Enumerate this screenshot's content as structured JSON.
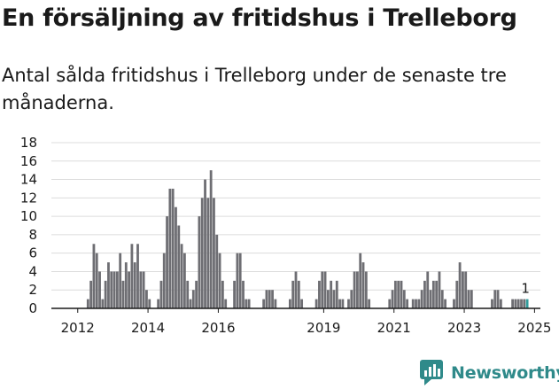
{
  "title": "En försäljning av fritidshus i Trelleborg",
  "subtitle": "Antal sålda fritidshus i Trelleborg under de senaste tre månaderna.",
  "brand": {
    "name": "Newsworthy",
    "icon": "newsworthy-logo-icon",
    "color": "#2f8a8a"
  },
  "chart_data": {
    "type": "bar",
    "title": "",
    "xlabel": "",
    "ylabel": "",
    "ylim": [
      0,
      18
    ],
    "yticks": [
      0,
      2,
      4,
      6,
      8,
      10,
      12,
      14,
      16,
      18
    ],
    "grid": true,
    "x_range": [
      "2011-10",
      "2025-09"
    ],
    "xtick_labels": [
      "2012",
      "2014",
      "2016",
      "2019",
      "2021",
      "2023",
      "2025"
    ],
    "bar_color": "#6e6e73",
    "highlight_color": "#2f9c9c",
    "highlight_label": "1",
    "series": [
      {
        "values": [
          {
            "x": "2012-10",
            "y": 1
          },
          {
            "x": "2012-11",
            "y": 3
          },
          {
            "x": "2012-12",
            "y": 7
          },
          {
            "x": "2013-01",
            "y": 6
          },
          {
            "x": "2013-02",
            "y": 4
          },
          {
            "x": "2013-03",
            "y": 1
          },
          {
            "x": "2013-04",
            "y": 3
          },
          {
            "x": "2013-05",
            "y": 5
          },
          {
            "x": "2013-06",
            "y": 4
          },
          {
            "x": "2013-07",
            "y": 4
          },
          {
            "x": "2013-08",
            "y": 4
          },
          {
            "x": "2013-09",
            "y": 6
          },
          {
            "x": "2013-10",
            "y": 3
          },
          {
            "x": "2013-11",
            "y": 5
          },
          {
            "x": "2013-12",
            "y": 4
          },
          {
            "x": "2014-01",
            "y": 7
          },
          {
            "x": "2014-02",
            "y": 5
          },
          {
            "x": "2014-03",
            "y": 7
          },
          {
            "x": "2014-04",
            "y": 4
          },
          {
            "x": "2014-05",
            "y": 4
          },
          {
            "x": "2014-06",
            "y": 2
          },
          {
            "x": "2014-07",
            "y": 1
          },
          {
            "x": "2014-10",
            "y": 1
          },
          {
            "x": "2014-11",
            "y": 3
          },
          {
            "x": "2014-12",
            "y": 6
          },
          {
            "x": "2015-01",
            "y": 10
          },
          {
            "x": "2015-02",
            "y": 13
          },
          {
            "x": "2015-03",
            "y": 13
          },
          {
            "x": "2015-04",
            "y": 11
          },
          {
            "x": "2015-05",
            "y": 9
          },
          {
            "x": "2015-06",
            "y": 7
          },
          {
            "x": "2015-07",
            "y": 6
          },
          {
            "x": "2015-08",
            "y": 3
          },
          {
            "x": "2015-09",
            "y": 1
          },
          {
            "x": "2015-10",
            "y": 2
          },
          {
            "x": "2015-11",
            "y": 3
          },
          {
            "x": "2015-12",
            "y": 10
          },
          {
            "x": "2016-01",
            "y": 12
          },
          {
            "x": "2016-02",
            "y": 14
          },
          {
            "x": "2016-03",
            "y": 12
          },
          {
            "x": "2016-04",
            "y": 15
          },
          {
            "x": "2016-05",
            "y": 12
          },
          {
            "x": "2016-06",
            "y": 8
          },
          {
            "x": "2016-07",
            "y": 6
          },
          {
            "x": "2016-08",
            "y": 3
          },
          {
            "x": "2016-09",
            "y": 1
          },
          {
            "x": "2016-12",
            "y": 3
          },
          {
            "x": "2017-01",
            "y": 6
          },
          {
            "x": "2017-02",
            "y": 6
          },
          {
            "x": "2017-03",
            "y": 3
          },
          {
            "x": "2017-04",
            "y": 1
          },
          {
            "x": "2017-05",
            "y": 1
          },
          {
            "x": "2017-10",
            "y": 1
          },
          {
            "x": "2017-11",
            "y": 2
          },
          {
            "x": "2017-12",
            "y": 2
          },
          {
            "x": "2018-01",
            "y": 2
          },
          {
            "x": "2018-02",
            "y": 1
          },
          {
            "x": "2018-07",
            "y": 1
          },
          {
            "x": "2018-08",
            "y": 3
          },
          {
            "x": "2018-09",
            "y": 4
          },
          {
            "x": "2018-10",
            "y": 3
          },
          {
            "x": "2018-11",
            "y": 1
          },
          {
            "x": "2019-04",
            "y": 1
          },
          {
            "x": "2019-05",
            "y": 3
          },
          {
            "x": "2019-06",
            "y": 4
          },
          {
            "x": "2019-07",
            "y": 4
          },
          {
            "x": "2019-08",
            "y": 2
          },
          {
            "x": "2019-09",
            "y": 3
          },
          {
            "x": "2019-10",
            "y": 2
          },
          {
            "x": "2019-11",
            "y": 3
          },
          {
            "x": "2019-12",
            "y": 1
          },
          {
            "x": "2020-01",
            "y": 1
          },
          {
            "x": "2020-03",
            "y": 1
          },
          {
            "x": "2020-04",
            "y": 2
          },
          {
            "x": "2020-05",
            "y": 4
          },
          {
            "x": "2020-06",
            "y": 4
          },
          {
            "x": "2020-07",
            "y": 6
          },
          {
            "x": "2020-08",
            "y": 5
          },
          {
            "x": "2020-09",
            "y": 4
          },
          {
            "x": "2020-10",
            "y": 1
          },
          {
            "x": "2021-05",
            "y": 1
          },
          {
            "x": "2021-06",
            "y": 2
          },
          {
            "x": "2021-07",
            "y": 3
          },
          {
            "x": "2021-08",
            "y": 3
          },
          {
            "x": "2021-09",
            "y": 3
          },
          {
            "x": "2021-10",
            "y": 2
          },
          {
            "x": "2021-11",
            "y": 1
          },
          {
            "x": "2022-01",
            "y": 1
          },
          {
            "x": "2022-02",
            "y": 1
          },
          {
            "x": "2022-03",
            "y": 1
          },
          {
            "x": "2022-04",
            "y": 2
          },
          {
            "x": "2022-05",
            "y": 3
          },
          {
            "x": "2022-06",
            "y": 4
          },
          {
            "x": "2022-07",
            "y": 2
          },
          {
            "x": "2022-08",
            "y": 3
          },
          {
            "x": "2022-09",
            "y": 3
          },
          {
            "x": "2022-10",
            "y": 4
          },
          {
            "x": "2022-11",
            "y": 2
          },
          {
            "x": "2022-12",
            "y": 1
          },
          {
            "x": "2023-03",
            "y": 1
          },
          {
            "x": "2023-04",
            "y": 3
          },
          {
            "x": "2023-05",
            "y": 5
          },
          {
            "x": "2023-06",
            "y": 4
          },
          {
            "x": "2023-07",
            "y": 4
          },
          {
            "x": "2023-08",
            "y": 2
          },
          {
            "x": "2023-09",
            "y": 2
          },
          {
            "x": "2024-04",
            "y": 1
          },
          {
            "x": "2024-05",
            "y": 2
          },
          {
            "x": "2024-06",
            "y": 2
          },
          {
            "x": "2024-07",
            "y": 1
          },
          {
            "x": "2024-11",
            "y": 1
          },
          {
            "x": "2024-12",
            "y": 1
          },
          {
            "x": "2025-01",
            "y": 1
          },
          {
            "x": "2025-02",
            "y": 1
          },
          {
            "x": "2025-03",
            "y": 1
          },
          {
            "x": "2025-04",
            "y": 1
          }
        ]
      }
    ]
  }
}
